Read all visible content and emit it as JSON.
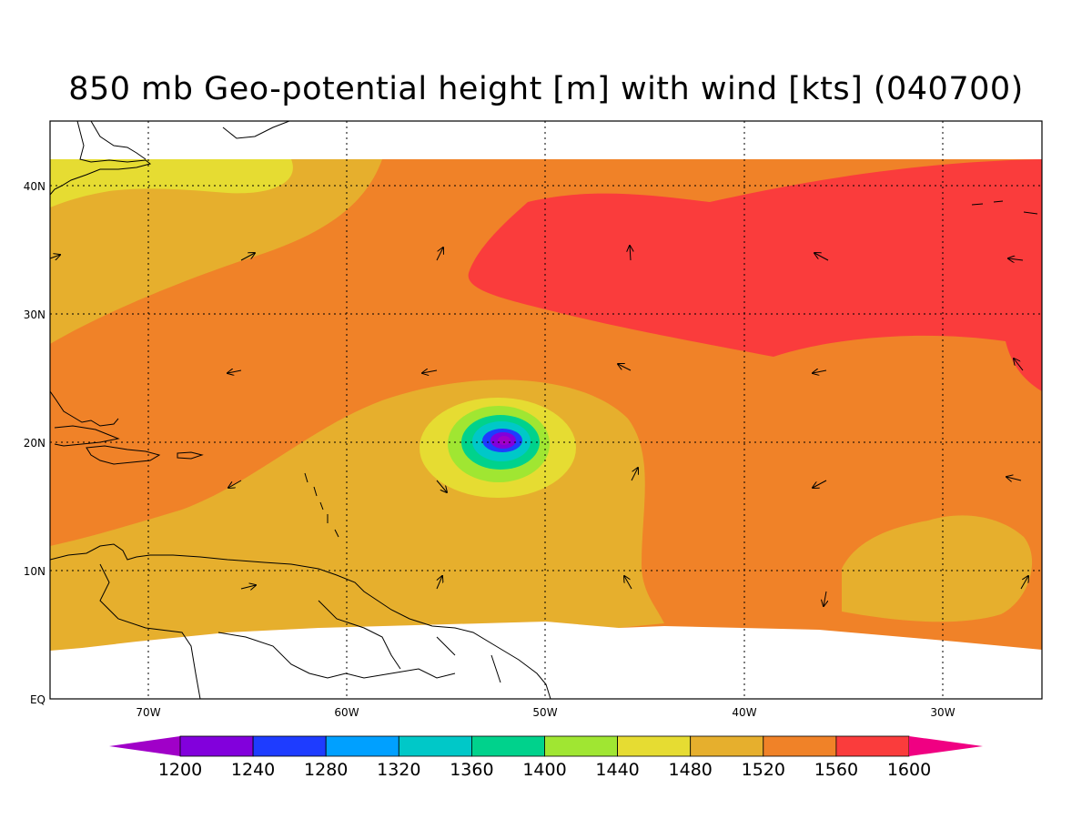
{
  "title": "850 mb Geo-potential height [m] with wind [kts] (040700)",
  "lon_labels": [
    "70W",
    "60W",
    "50W",
    "40W",
    "30W"
  ],
  "lat_labels": [
    "40N",
    "30N",
    "20N",
    "10N",
    "EQ"
  ],
  "colorbar": {
    "labels": [
      "1200",
      "1240",
      "1280",
      "1320",
      "1360",
      "1400",
      "1440",
      "1480",
      "1520",
      "1560",
      "1600"
    ],
    "colors": [
      "#a000c8",
      "#8200dc",
      "#1e3cff",
      "#00a0ff",
      "#00c8c8",
      "#00d28c",
      "#a0e632",
      "#e6dc32",
      "#e6af2d",
      "#f08228",
      "#fa3c3c",
      "#f00082"
    ]
  },
  "colors": {
    "lowest": "#e6dc32",
    "low": "#e6af2d",
    "mid": "#f08228",
    "high": "#fa3c3c"
  }
}
